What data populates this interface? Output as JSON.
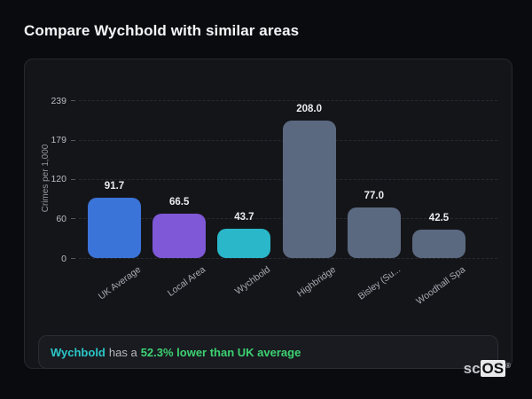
{
  "page": {
    "title": "Compare Wychbold with similar areas"
  },
  "chart_data": {
    "type": "bar",
    "title": "",
    "xlabel": "",
    "ylabel": "Crimes per 1,000",
    "categories": [
      "UK Average",
      "Local Area",
      "Wychbold",
      "Highbridge",
      "Bisley (Su...",
      "Woodhall Spa"
    ],
    "values": [
      91.7,
      66.5,
      43.7,
      208.0,
      77.0,
      42.5
    ],
    "value_labels": [
      "91.7",
      "66.5",
      "43.7",
      "208.0",
      "77.0",
      "42.5"
    ],
    "bar_colors": [
      "#3b74d8",
      "#7e58d6",
      "#29b7c9",
      "#5b6980",
      "#5b6980",
      "#5b6980"
    ],
    "yticks": [
      0,
      60,
      120,
      179,
      239
    ],
    "ytick_labels": [
      "0",
      "60",
      "120",
      "179",
      "239"
    ],
    "ylim": [
      0,
      239
    ],
    "grid": "horizontal-dashed",
    "legend": "none",
    "xtick_rotation_deg": 36
  },
  "footer": {
    "highlight_area": "Wychbold",
    "connector": "has a",
    "stat": "52.3% lower than UK average"
  },
  "logo": {
    "prefix": "sc",
    "suffix": "OS",
    "registered": "®"
  },
  "colors": {
    "background": "#0a0b0e",
    "panel": "#141519",
    "accent_blue": "#3b74d8",
    "accent_purple": "#7e58d6",
    "accent_teal": "#29b7c9",
    "neutral_bar": "#5b6980",
    "positive_green": "#3dd173"
  }
}
